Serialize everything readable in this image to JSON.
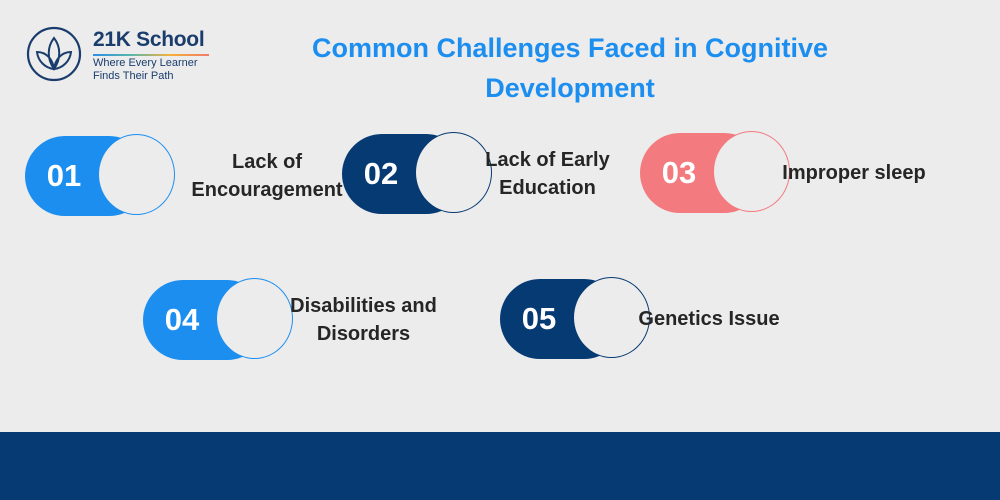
{
  "brand": {
    "name": "21K School",
    "tagline_line1": "Where Every Learner",
    "tagline_line2": "Finds Their Path"
  },
  "title": "Common Challenges Faced in Cognitive Development",
  "colors": {
    "title": "#1c8ef0",
    "blue": "#1c8ef0",
    "navy": "#063a73",
    "coral": "#f37a7f",
    "footer": "#063a73",
    "background": "#ececec"
  },
  "challenges": [
    {
      "number": "01",
      "label": "Lack of Encouragement",
      "color": "#1c8ef0"
    },
    {
      "number": "02",
      "label": "Lack of Early Education",
      "color": "#063a73"
    },
    {
      "number": "03",
      "label": "Improper sleep",
      "color": "#f37a7f"
    },
    {
      "number": "04",
      "label": "Disabilities and Disorders",
      "color": "#1c8ef0"
    },
    {
      "number": "05",
      "label": "Genetics Issue",
      "color": "#063a73"
    }
  ]
}
